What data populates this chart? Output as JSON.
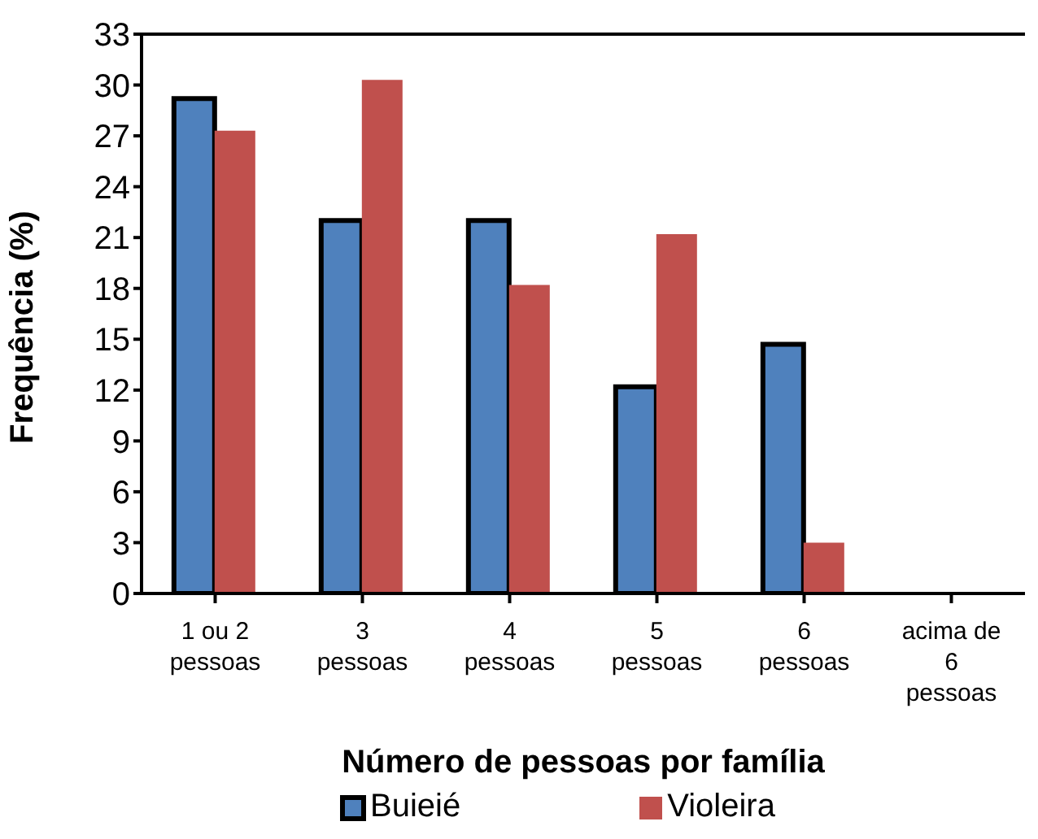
{
  "chart_data": {
    "type": "bar",
    "xlabel": "Número de pessoas por família",
    "ylabel": "Frequência (%)",
    "categories": [
      "1 ou 2 pessoas",
      "3 pessoas",
      "4 pessoas",
      "5 pessoas",
      "6 pessoas",
      "acima de 6 pessoas"
    ],
    "series": [
      {
        "name": "Buieié",
        "color": "#4f81bd",
        "values": [
          29.2,
          22,
          22,
          12.2,
          14.7,
          0
        ]
      },
      {
        "name": "Violeira",
        "color": "#c0504d",
        "values": [
          27.3,
          30.3,
          18.2,
          21.2,
          3,
          0
        ]
      }
    ],
    "ylim": [
      0,
      33
    ],
    "yticks": [
      0,
      3,
      6,
      9,
      12,
      15,
      18,
      21,
      24,
      27,
      30,
      33
    ],
    "grid": false,
    "legend": "bottom"
  }
}
